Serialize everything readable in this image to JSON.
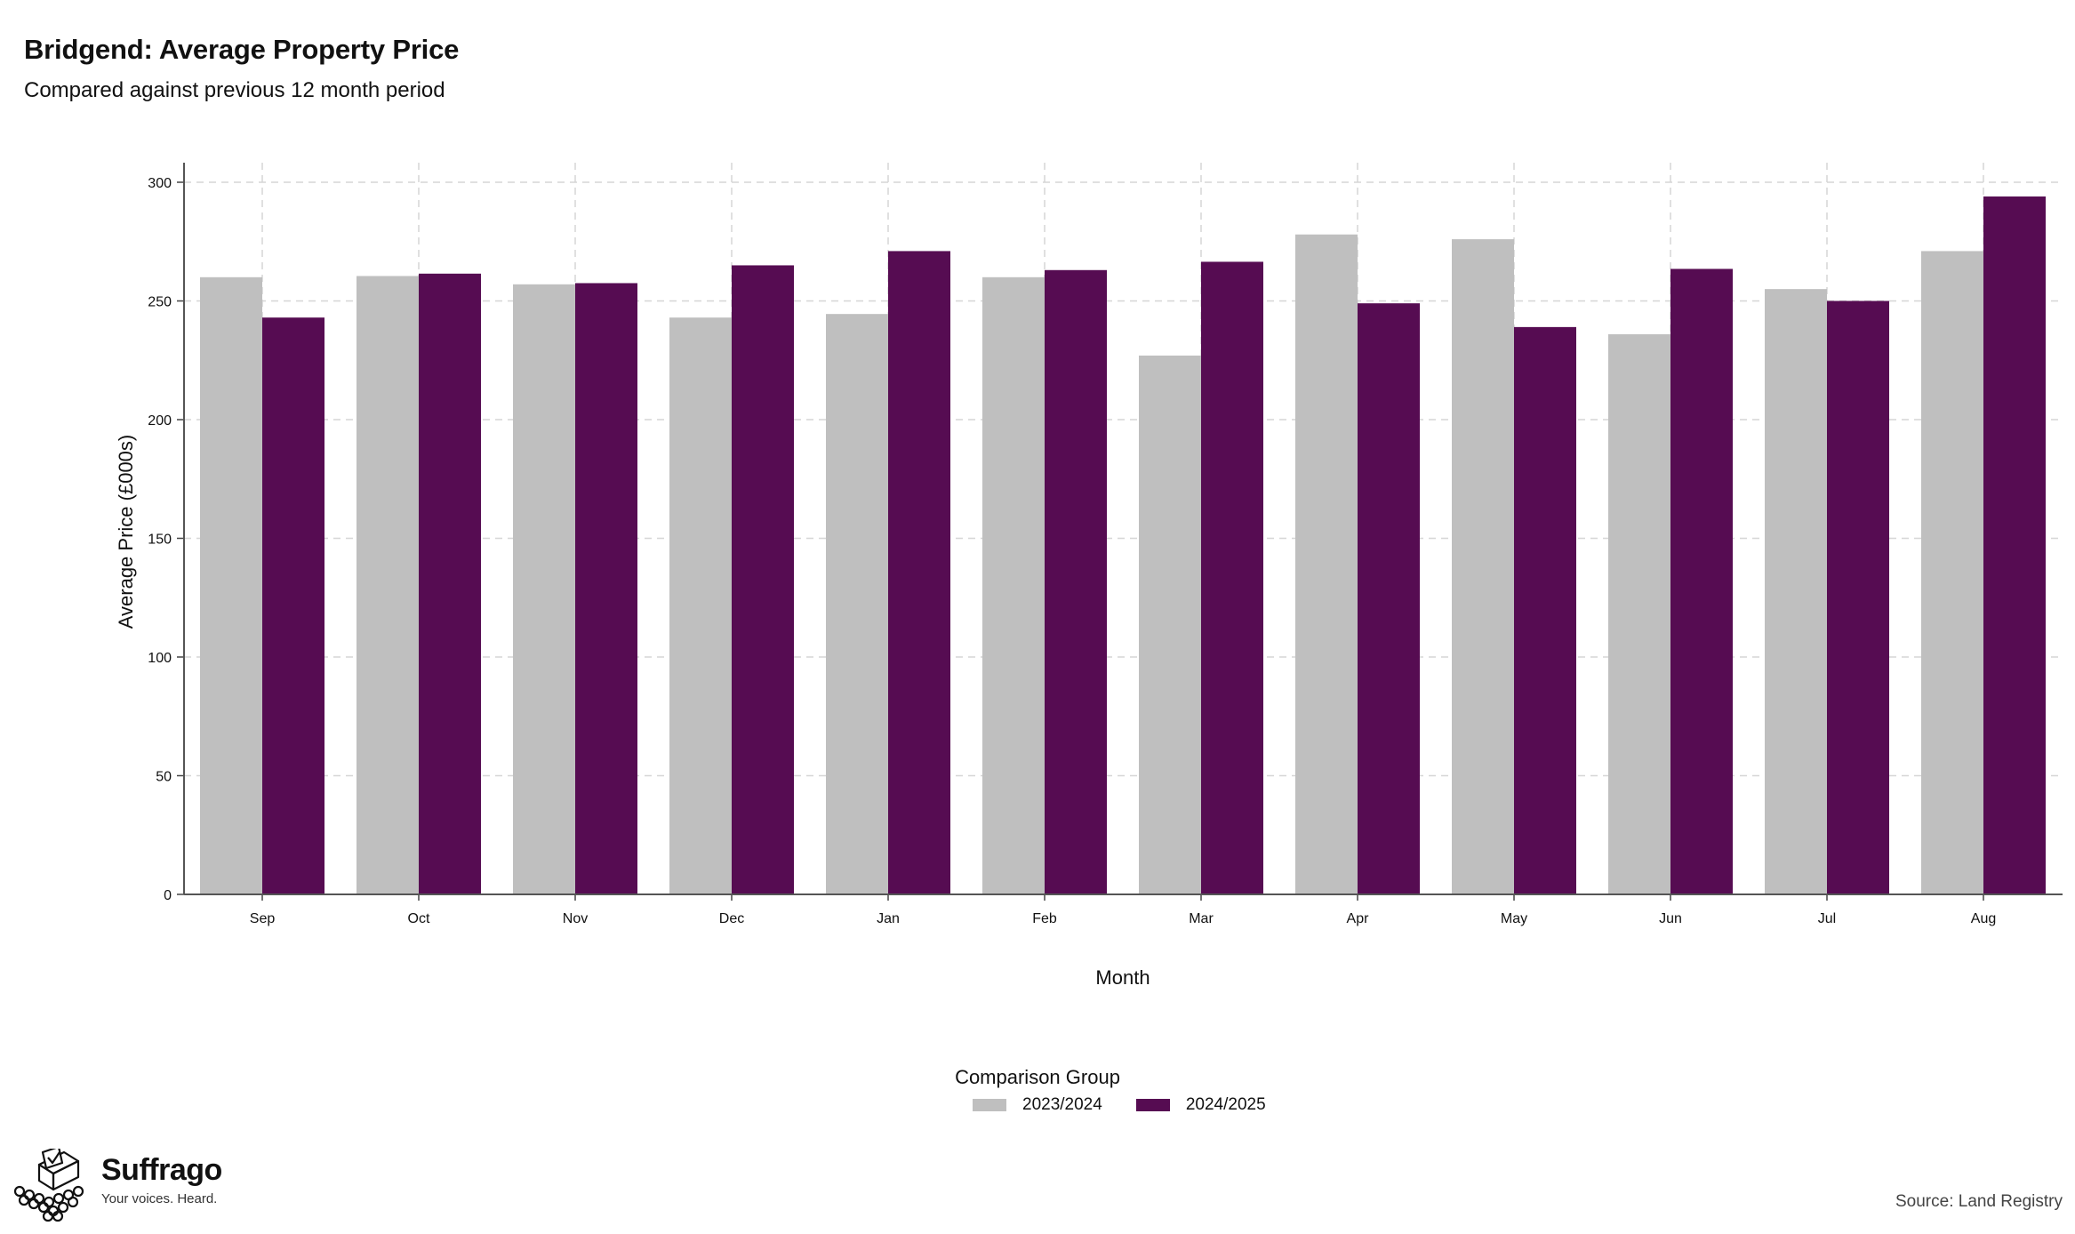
{
  "header": {
    "title": "Bridgend: Average Property Price",
    "subtitle": "Compared against previous 12 month period"
  },
  "legend": {
    "title": "Comparison Group",
    "items": [
      {
        "label": "2023/2024",
        "color": "#bfbfbf"
      },
      {
        "label": "2024/2025",
        "color": "#560c52"
      }
    ]
  },
  "branding": {
    "name": "Suffrago",
    "tagline": "Your voices. Heard.",
    "icon": "ballot-box-icon"
  },
  "footer": {
    "source": "Source: Land Registry"
  },
  "chart_data": {
    "type": "bar",
    "title": "Bridgend: Average Property Price",
    "subtitle": "Compared against previous 12 month period",
    "xlabel": "Month",
    "ylabel": "Average Price (£000s)",
    "categories": [
      "Sep",
      "Oct",
      "Nov",
      "Dec",
      "Jan",
      "Feb",
      "Mar",
      "Apr",
      "May",
      "Jun",
      "Jul",
      "Aug"
    ],
    "series": [
      {
        "name": "2023/2024",
        "color": "#bfbfbf",
        "values": [
          260,
          260.5,
          257,
          243,
          244.5,
          260,
          227,
          278,
          276,
          236,
          255,
          271
        ]
      },
      {
        "name": "2024/2025",
        "color": "#560c52",
        "values": [
          243,
          261.5,
          257.5,
          265,
          271,
          263,
          266.5,
          249,
          239,
          263.5,
          250,
          294
        ]
      }
    ],
    "ylim": [
      0,
      300
    ],
    "yticks": [
      0,
      50,
      100,
      150,
      200,
      250,
      300
    ],
    "grid": true,
    "legend_position": "bottom-center"
  }
}
